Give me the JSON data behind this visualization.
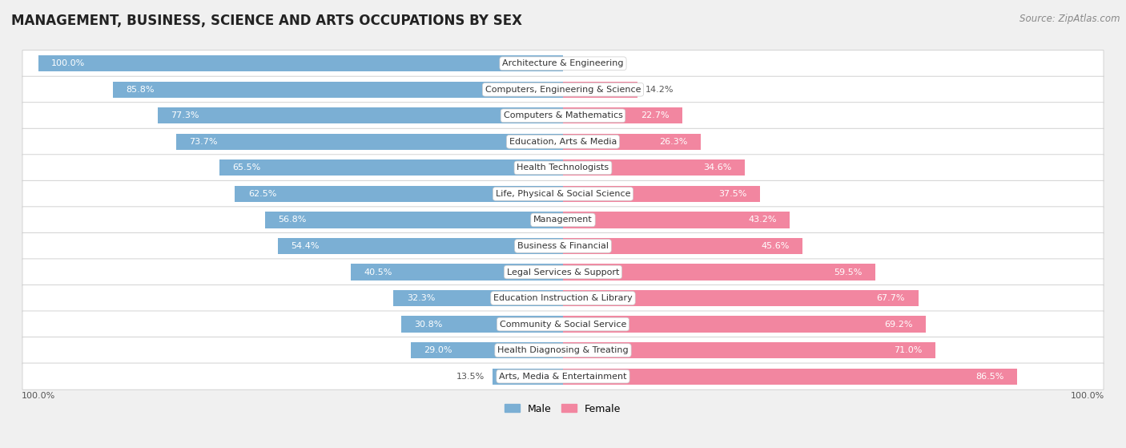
{
  "title": "MANAGEMENT, BUSINESS, SCIENCE AND ARTS OCCUPATIONS BY SEX",
  "source": "Source: ZipAtlas.com",
  "categories": [
    "Architecture & Engineering",
    "Computers, Engineering & Science",
    "Computers & Mathematics",
    "Education, Arts & Media",
    "Health Technologists",
    "Life, Physical & Social Science",
    "Management",
    "Business & Financial",
    "Legal Services & Support",
    "Education Instruction & Library",
    "Community & Social Service",
    "Health Diagnosing & Treating",
    "Arts, Media & Entertainment"
  ],
  "male": [
    100.0,
    85.8,
    77.3,
    73.7,
    65.5,
    62.5,
    56.8,
    54.4,
    40.5,
    32.3,
    30.8,
    29.0,
    13.5
  ],
  "female": [
    0.0,
    14.2,
    22.7,
    26.3,
    34.6,
    37.5,
    43.2,
    45.6,
    59.5,
    67.7,
    69.2,
    71.0,
    86.5
  ],
  "male_color": "#7BAFD4",
  "female_color": "#F286A0",
  "bg_color": "#F0F0F0",
  "row_bg_color": "#FFFFFF",
  "title_fontsize": 12,
  "source_fontsize": 8.5,
  "label_fontsize": 8,
  "cat_fontsize": 8,
  "bar_height": 0.62,
  "legend_male": "Male",
  "legend_female": "Female",
  "xlim": 100,
  "row_edge_color": "#CCCCCC",
  "male_label_threshold": 20,
  "female_label_threshold": 20
}
